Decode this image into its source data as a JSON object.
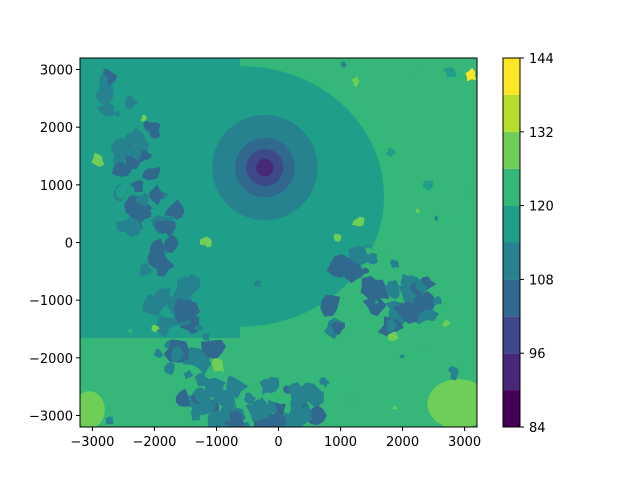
{
  "chart_data": {
    "type": "heatmap",
    "subtype": "filled-contour",
    "title": "",
    "xlabel": "",
    "ylabel": "",
    "xlim": [
      -3200,
      3200
    ],
    "ylim": [
      -3200,
      3200
    ],
    "x_ticks": [
      -3000,
      -2000,
      -1000,
      0,
      1000,
      2000,
      3000
    ],
    "y_ticks": [
      -3000,
      -2000,
      -1000,
      0,
      1000,
      2000,
      3000
    ],
    "colorbar": {
      "levels": [
        84,
        90,
        96,
        102,
        108,
        114,
        120,
        126,
        132,
        138,
        144
      ],
      "tick_labels": [
        84,
        96,
        108,
        120,
        132,
        144
      ],
      "band_colors": [
        "#440154",
        "#482878",
        "#3e4989",
        "#31688e",
        "#26828e",
        "#1f9e89",
        "#35b779",
        "#6ece58",
        "#b5de2b",
        "#fde725"
      ]
    },
    "features": [
      {
        "kind": "minimum",
        "center": [
          -220,
          1300
        ],
        "value": 87,
        "note": "deep low surrounded by concentric rings of ~96, 102, 108, 114"
      },
      {
        "kind": "ring",
        "center": [
          -220,
          1300
        ],
        "radius": 1200,
        "value": 114
      },
      {
        "kind": "field",
        "region": "most of domain",
        "value_range": [
          108,
          126
        ]
      }
    ]
  }
}
